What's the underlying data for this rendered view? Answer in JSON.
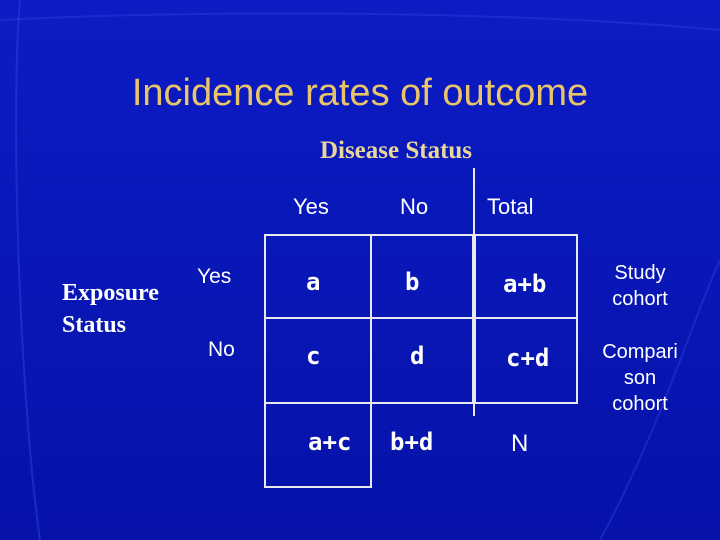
{
  "title": "Incidence rates of outcome",
  "subtitle": "Disease Status",
  "exposure_label_line1": "Exposure",
  "exposure_label_line2": "Status",
  "columns": {
    "yes": "Yes",
    "no": "No",
    "total": "Total"
  },
  "rows": {
    "yes": "Yes",
    "no": "No"
  },
  "cells": {
    "a": "a",
    "b": "b",
    "a_plus_b": "a+b",
    "c": "c",
    "d": "d",
    "c_plus_d": "c+d",
    "a_plus_c": "a+c",
    "b_plus_d": "b+d",
    "n": "N"
  },
  "side_labels": {
    "study": [
      "Study",
      "cohort"
    ],
    "comparison": [
      "Compari",
      "son",
      "cohort"
    ]
  },
  "colors": {
    "background": "#0a14b8",
    "title": "#e9c46a",
    "subtitle": "#e9d79a",
    "text": "#ffffff"
  }
}
